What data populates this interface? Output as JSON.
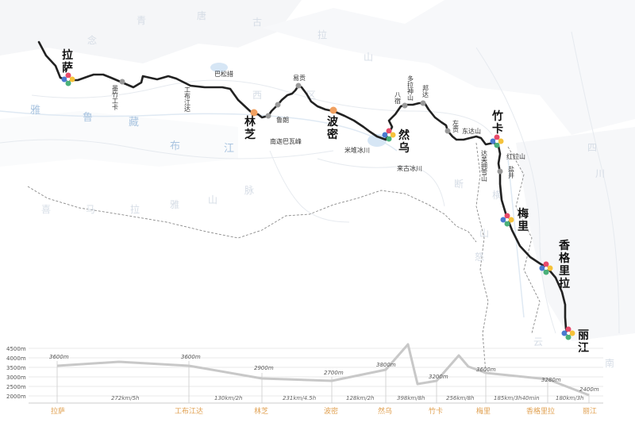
{
  "map": {
    "region_labels": [
      {
        "text": "青"
      },
      {
        "text": "唐"
      },
      {
        "text": "古"
      },
      {
        "text": "拉"
      },
      {
        "text": "念"
      },
      {
        "text": "山"
      },
      {
        "text": "西"
      },
      {
        "text": "区"
      },
      {
        "text": "喜"
      },
      {
        "text": "马"
      },
      {
        "text": "拉"
      },
      {
        "text": "雅"
      },
      {
        "text": "山"
      },
      {
        "text": "脉"
      },
      {
        "text": "怒"
      },
      {
        "text": "四"
      },
      {
        "text": "川"
      },
      {
        "text": "云"
      },
      {
        "text": "南"
      },
      {
        "text": "横"
      },
      {
        "text": "断"
      },
      {
        "text": "山"
      }
    ],
    "river_labels": [
      {
        "text": "雅"
      },
      {
        "text": "鲁"
      },
      {
        "text": "藏"
      },
      {
        "text": "布"
      },
      {
        "text": "江"
      }
    ],
    "major_stops": [
      {
        "name": "拉萨",
        "chars": [
          "拉",
          "萨"
        ]
      },
      {
        "name": "林芝",
        "chars": [
          "林",
          "芝"
        ]
      },
      {
        "name": "波密",
        "chars": [
          "波",
          "密"
        ]
      },
      {
        "name": "然乌",
        "chars": [
          "然",
          "乌"
        ]
      },
      {
        "name": "竹卡",
        "chars": [
          "竹",
          "卡"
        ]
      },
      {
        "name": "梅里",
        "chars": [
          "梅",
          "里"
        ]
      },
      {
        "name": "香格里拉",
        "chars": [
          "香",
          "格",
          "里",
          "拉"
        ]
      },
      {
        "name": "丽江",
        "chars": [
          "丽",
          "江"
        ]
      }
    ],
    "minor_places": [
      {
        "text": "墨竹工卡",
        "chars": [
          "墨",
          "竹",
          "工",
          "卡"
        ]
      },
      {
        "text": "工布江达",
        "chars": [
          "工",
          "布",
          "江",
          "达"
        ]
      },
      {
        "text": "巴松措",
        "chars": [
          "巴松措"
        ]
      },
      {
        "text": "鲁朗",
        "chars": [
          "鲁朗"
        ]
      },
      {
        "text": "易贡",
        "chars": [
          "易贡"
        ]
      },
      {
        "text": "南迦巴瓦峰",
        "chars": [
          "南迦巴瓦峰"
        ]
      },
      {
        "text": "米堆冰川",
        "chars": [
          "米堆冰川"
        ]
      },
      {
        "text": "八宿",
        "chars": [
          "八",
          "宿"
        ]
      },
      {
        "text": "多拉神山",
        "chars": [
          "多",
          "拉",
          "神",
          "山"
        ]
      },
      {
        "text": "邦达",
        "chars": [
          "邦",
          "达"
        ]
      },
      {
        "text": "来古冰川",
        "chars": [
          "来古冰川"
        ]
      },
      {
        "text": "左贡",
        "chars": [
          "左",
          "贡"
        ]
      },
      {
        "text": "东达山",
        "chars": [
          "东达山"
        ]
      },
      {
        "text": "达美拥雪山",
        "chars": [
          "达",
          "美",
          "拥",
          "雪",
          "山"
        ]
      },
      {
        "text": "红拉山",
        "chars": [
          "红拉山"
        ]
      },
      {
        "text": "盐井",
        "chars": [
          "盐",
          "井"
        ]
      }
    ]
  },
  "profile": {
    "y_axis": [
      "4500m",
      "4000m",
      "3500m",
      "3000m",
      "2500m",
      "2000m"
    ],
    "elevations": [
      "3600m",
      "3600m",
      "2900m",
      "2700m",
      "3800m",
      "3200m",
      "3600m",
      "3280m",
      "2400m"
    ],
    "segments": [
      "272km/5h",
      "130km/2h",
      "231km/4.5h",
      "128km/2h",
      "398km/8h",
      "256km/8h",
      "185km/3h40min",
      "180km/3h"
    ],
    "stops": [
      "拉萨",
      "工布江达",
      "林芝",
      "波密",
      "然乌",
      "竹卡",
      "梅里",
      "香格里拉",
      "丽江"
    ]
  },
  "colors": {
    "route": "#222222",
    "dot_gray": "#999999",
    "dot_orange": "#f0a060",
    "label_orange": "#e0a050",
    "profile_line": "#c8c8c8"
  }
}
